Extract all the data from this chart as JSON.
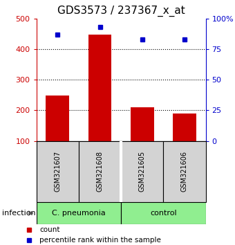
{
  "title": "GDS3573 / 237367_x_at",
  "samples": [
    "GSM321607",
    "GSM321608",
    "GSM321605",
    "GSM321606"
  ],
  "counts": [
    248,
    447,
    210,
    190
  ],
  "percentiles": [
    87,
    93,
    83,
    83
  ],
  "group_labels": [
    "C. pneumonia",
    "control"
  ],
  "group_color": "#90EE90",
  "group_factor": "infection",
  "bar_color": "#CC0000",
  "dot_color": "#0000CC",
  "ylim_left": [
    100,
    500
  ],
  "ylim_right": [
    0,
    100
  ],
  "yticks_left": [
    100,
    200,
    300,
    400,
    500
  ],
  "yticks_right": [
    0,
    25,
    50,
    75,
    100
  ],
  "ytick_labels_right": [
    "0",
    "25",
    "50",
    "75",
    "100%"
  ],
  "label_bg": "#D3D3D3",
  "title_fontsize": 11,
  "tick_fontsize": 8,
  "sample_fontsize": 7,
  "group_fontsize": 8,
  "legend_fontsize": 7.5,
  "infection_fontsize": 8,
  "bar_width": 0.55
}
